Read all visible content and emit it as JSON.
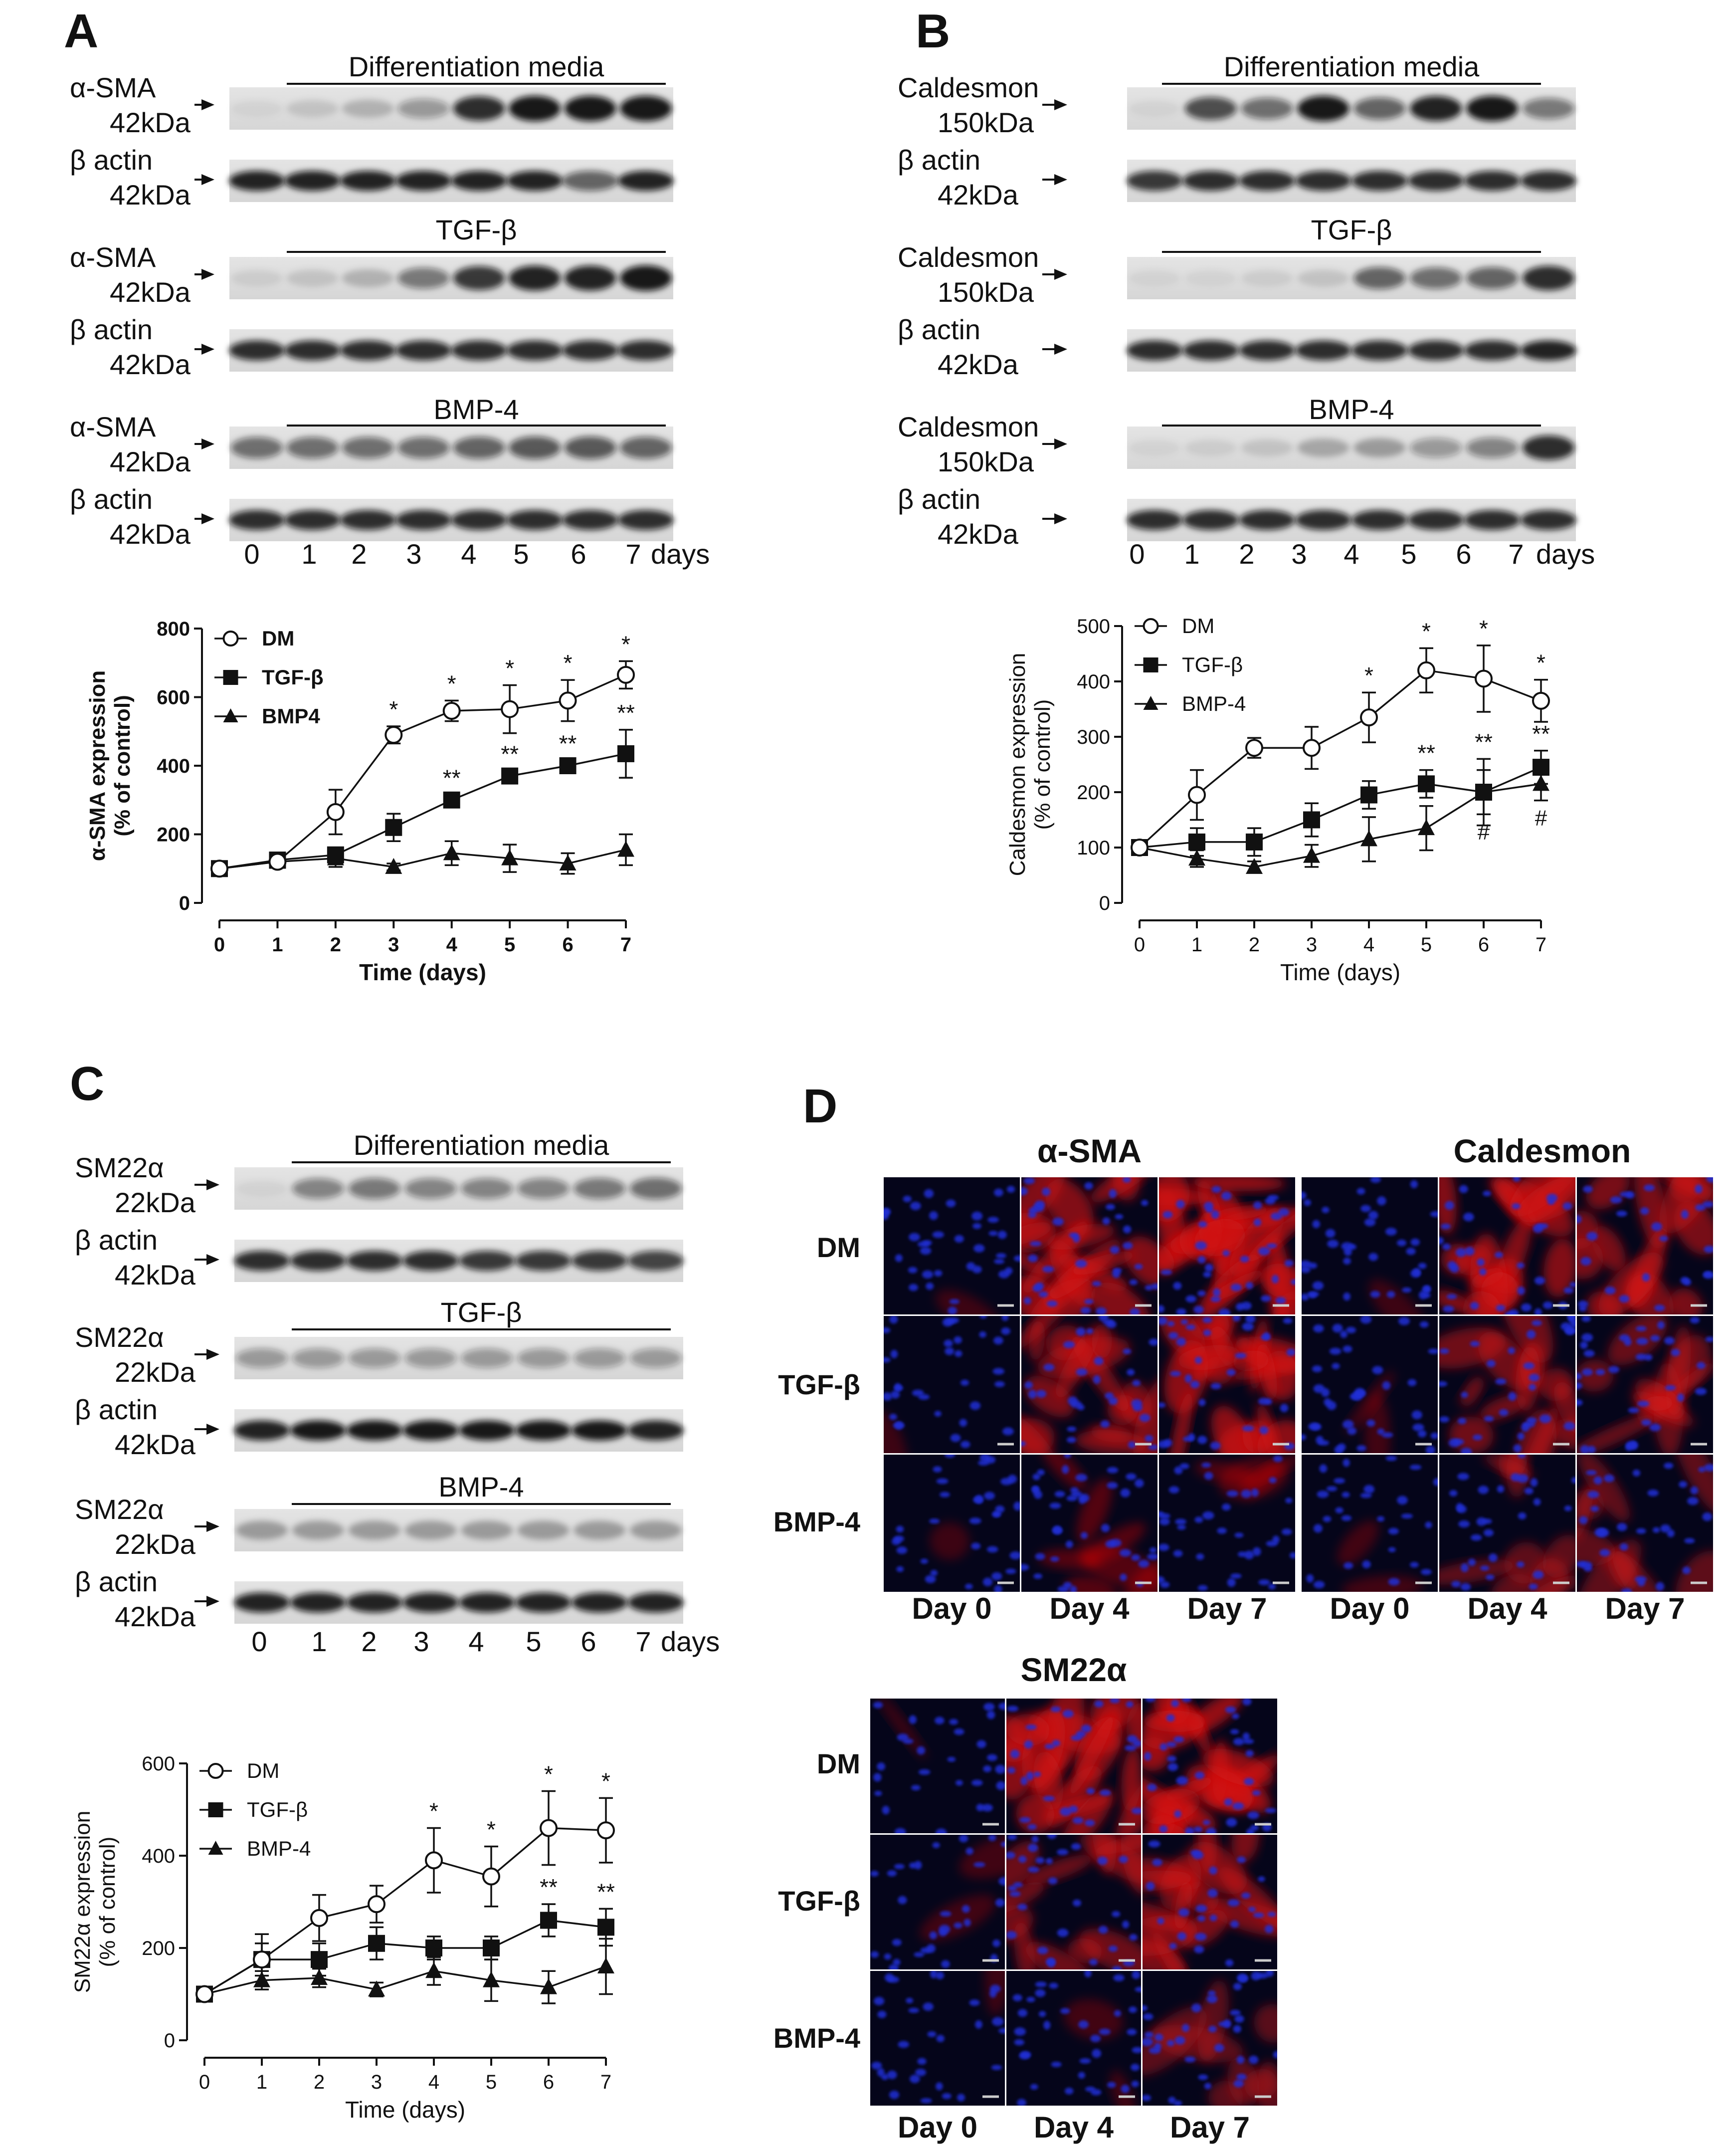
{
  "colors": {
    "dm_marker_fill": "#ffffff",
    "series_stroke": "#111111",
    "fluor_nuclei": "#1f2fd6",
    "fluor_actin": "#d01010",
    "background": "#ffffff"
  },
  "blot_lanes": [
    "0",
    "1",
    "2",
    "3",
    "4",
    "5",
    "6",
    "7"
  ],
  "days_suffix": "days",
  "panels": [
    {
      "letter": "A",
      "header_lines": [
        "Differentiation  media",
        "TGF-β",
        "BMP-4"
      ],
      "blots": [
        {
          "marker": "α-SMA",
          "marker_kda": "42kDa",
          "loading": "β actin",
          "loading_kda": "42kDa"
        },
        {
          "marker": "α-SMA",
          "marker_kda": "42kDa",
          "loading": "β actin",
          "loading_kda": "42kDa"
        },
        {
          "marker": "α-SMA",
          "marker_kda": "42kDa",
          "loading": "β actin",
          "loading_kda": "42kDa"
        }
      ]
    },
    {
      "letter": "B",
      "header_lines": [
        "Differentiation  media",
        "TGF-β",
        "BMP-4"
      ],
      "blots": [
        {
          "marker": "Caldesmon",
          "marker_kda": "150kDa",
          "loading": "β actin",
          "loading_kda": "42kDa"
        },
        {
          "marker": "Caldesmon",
          "marker_kda": "150kDa",
          "loading": "β actin",
          "loading_kda": "42kDa"
        },
        {
          "marker": "Caldesmon",
          "marker_kda": "150kDa",
          "loading": "β actin",
          "loading_kda": "42kDa"
        }
      ]
    },
    {
      "letter": "C",
      "header_lines": [
        "Differentiation  media",
        "TGF-β",
        "BMP-4"
      ],
      "blots": [
        {
          "marker": "SM22α",
          "marker_kda": "22kDa",
          "loading": "β actin",
          "loading_kda": "42kDa"
        },
        {
          "marker": "SM22α",
          "marker_kda": "22kDa",
          "loading": "β actin",
          "loading_kda": "42kDa"
        },
        {
          "marker": "SM22α",
          "marker_kda": "22kDa",
          "loading": "β actin",
          "loading_kda": "42kDa"
        }
      ]
    }
  ],
  "panel_d": {
    "letter": "D",
    "groups": [
      {
        "title": "α-SMA",
        "rows": [
          "DM",
          "TGF-β",
          "BMP-4"
        ],
        "cols": [
          "Day 0",
          "Day 4",
          "Day 7"
        ]
      },
      {
        "title": "Caldesmon",
        "rows": [
          "DM",
          "TGF-β",
          "BMP-4"
        ],
        "cols": [
          "Day 0",
          "Day 4",
          "Day 7"
        ]
      },
      {
        "title": "SM22α",
        "rows": [
          "DM",
          "TGF-β",
          "BMP-4"
        ],
        "cols": [
          "Day 0",
          "Day 4",
          "Day 7"
        ]
      }
    ]
  },
  "chart_data": [
    {
      "panel": "A",
      "type": "line",
      "xlabel": "Time (days)",
      "ylabel": "α-SMA expression",
      "ylabel2": "(% of control)",
      "xlim": [
        0,
        7
      ],
      "ylim": [
        0,
        800
      ],
      "yticks": [
        0,
        200,
        400,
        600,
        800
      ],
      "x": [
        0,
        1,
        2,
        3,
        4,
        5,
        6,
        7
      ],
      "series": [
        {
          "name": "DM",
          "marker": "circle-open",
          "values": [
            100,
            120,
            265,
            490,
            560,
            565,
            590,
            665
          ],
          "err": [
            15,
            15,
            65,
            25,
            30,
            70,
            60,
            40
          ],
          "annotations": [
            "",
            "",
            "",
            "*",
            "*",
            "*",
            "*",
            "*"
          ]
        },
        {
          "name": "TGF-β",
          "marker": "square",
          "values": [
            100,
            125,
            140,
            220,
            300,
            370,
            400,
            435
          ],
          "err": [
            10,
            15,
            20,
            40,
            15,
            15,
            15,
            70
          ],
          "annotations": [
            "",
            "",
            "",
            "",
            "**",
            "**",
            "**",
            "**"
          ]
        },
        {
          "name": "BMP4",
          "marker": "triangle",
          "values": [
            100,
            120,
            130,
            105,
            145,
            130,
            115,
            155
          ],
          "err": [
            10,
            15,
            25,
            10,
            35,
            40,
            30,
            45
          ],
          "annotations": [
            "",
            "",
            "",
            "",
            "",
            "",
            "",
            ""
          ]
        }
      ]
    },
    {
      "panel": "B",
      "type": "line",
      "xlabel": "Time (days)",
      "ylabel": "Caldesmon expression",
      "ylabel2": "(% of control)",
      "xlim": [
        0,
        7
      ],
      "ylim": [
        0,
        500
      ],
      "yticks": [
        0,
        100,
        200,
        300,
        400,
        500
      ],
      "x": [
        0,
        1,
        2,
        3,
        4,
        5,
        6,
        7
      ],
      "series": [
        {
          "name": "DM",
          "marker": "circle-open",
          "values": [
            100,
            195,
            280,
            280,
            335,
            420,
            405,
            365
          ],
          "err": [
            8,
            45,
            18,
            38,
            45,
            40,
            60,
            38
          ],
          "annotations": [
            "",
            "",
            "",
            "",
            "*",
            "*",
            "*",
            "*"
          ]
        },
        {
          "name": "TGF-β",
          "marker": "square",
          "values": [
            100,
            110,
            110,
            150,
            195,
            215,
            200,
            245
          ],
          "err": [
            8,
            25,
            25,
            30,
            25,
            25,
            60,
            30
          ],
          "annotations": [
            "",
            "",
            "",
            "",
            "",
            "**",
            "**",
            "**"
          ]
        },
        {
          "name": "BMP-4",
          "marker": "triangle",
          "values": [
            100,
            80,
            65,
            85,
            115,
            135,
            200,
            215
          ],
          "err": [
            8,
            15,
            10,
            20,
            40,
            40,
            40,
            30
          ],
          "annotations": [
            "",
            "",
            "",
            "",
            "",
            "",
            "#",
            "#"
          ]
        }
      ]
    },
    {
      "panel": "C",
      "type": "line",
      "xlabel": "Time (days)",
      "ylabel": "SM22α expression",
      "ylabel2": "(% of control)",
      "xlim": [
        0,
        7
      ],
      "ylim": [
        0,
        600
      ],
      "yticks": [
        0,
        200,
        400,
        600
      ],
      "x": [
        0,
        1,
        2,
        3,
        4,
        5,
        6,
        7
      ],
      "series": [
        {
          "name": "DM",
          "marker": "circle-open",
          "values": [
            100,
            175,
            265,
            295,
            390,
            355,
            460,
            455
          ],
          "err": [
            10,
            55,
            50,
            40,
            70,
            65,
            80,
            70
          ],
          "annotations": [
            "",
            "",
            "",
            "",
            "*",
            "*",
            "*",
            "*"
          ]
        },
        {
          "name": "TGF-β",
          "marker": "square",
          "values": [
            100,
            175,
            175,
            210,
            200,
            200,
            260,
            245
          ],
          "err": [
            10,
            35,
            35,
            35,
            25,
            25,
            35,
            40
          ],
          "annotations": [
            "",
            "",
            "",
            "",
            "",
            "",
            "**",
            "**"
          ]
        },
        {
          "name": "BMP-4",
          "marker": "triangle",
          "values": [
            100,
            130,
            135,
            110,
            150,
            130,
            115,
            160
          ],
          "err": [
            10,
            20,
            20,
            15,
            30,
            45,
            35,
            60
          ],
          "annotations": [
            "",
            "",
            "",
            "",
            "",
            "",
            "",
            ""
          ]
        }
      ]
    }
  ]
}
